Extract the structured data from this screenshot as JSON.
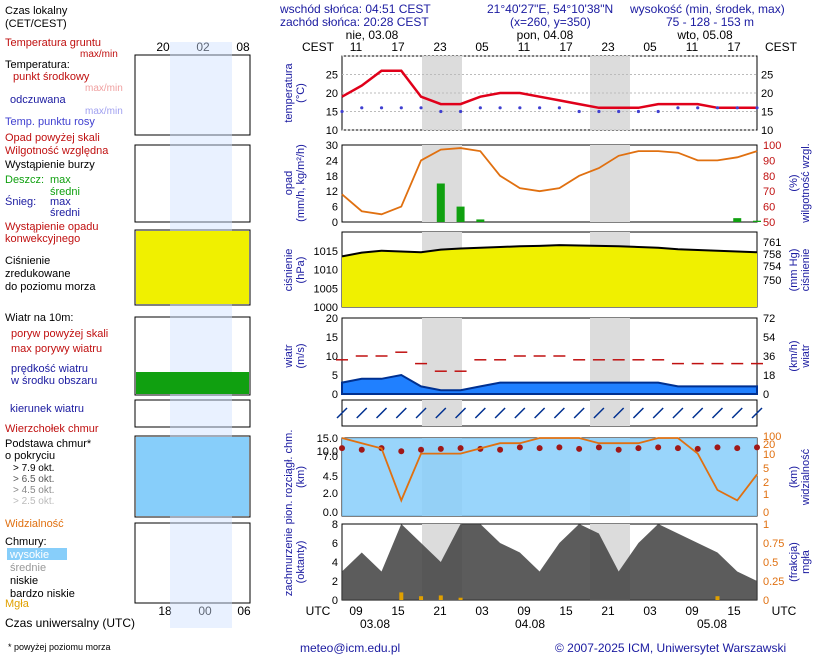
{
  "colors": {
    "temp": "#e0001a",
    "dew": "#4040d0",
    "red": "#c01010",
    "blue": "#1a1aa0",
    "orange": "#e07010",
    "green": "#10a010",
    "pressure": "#f0f000",
    "wind_dark": "#003090",
    "wind_light": "#2080ff",
    "cloud_dark": "#404040",
    "night": "#dcdcdc",
    "sky": "#87cefa"
  },
  "header": {
    "sunrise": "wschód słońca: 04:51 CEST",
    "sunset": "zachód słońca: 20:28 CEST",
    "coords": "21°40'27\"E, 54°10'38\"N",
    "grid": "(x=260, y=350)",
    "height_label": "wysokość (min, środek, max)",
    "heights": "75 - 128 - 153 m"
  },
  "timezone_label": "CEST",
  "days": [
    {
      "label": "nie, 03.08"
    },
    {
      "label": "pon, 04.08"
    },
    {
      "label": "wto, 05.08"
    }
  ],
  "top_hours": [
    "11",
    "17",
    "23",
    "05",
    "11",
    "17",
    "23",
    "05",
    "11",
    "17"
  ],
  "bottom_hours": [
    "09",
    "15",
    "21",
    "03",
    "09",
    "15",
    "21",
    "03",
    "09",
    "15"
  ],
  "bottom_dates": [
    "03.08",
    "04.08",
    "05.08"
  ],
  "utc_label": "UTC",
  "legend": {
    "time_title": "Czas lokalny\n(CET/CEST)",
    "time_hours": [
      "20",
      "02",
      "08"
    ],
    "utc_hours": [
      "18",
      "00",
      "06"
    ],
    "utc_title": "Czas uniwersalny (UTC)",
    "temp_soil": "Temperatura gruntu",
    "max_min": "max/min",
    "temp": "Temperatura:",
    "temp_point": "punkt środkowy",
    "max_min2": "max/min",
    "perceived": "odczuwana",
    "max_min3": "max/min",
    "dew": "Temp. punktu rosy",
    "precip_above": "Opad powyżej skali",
    "humidity": "Wilgotność względna",
    "storm": "Wystąpienie burzy",
    "rain": "Deszcz:",
    "rain_max": "max",
    "rain_mid": "średni",
    "snow": "Śnieg:",
    "snow_max": "max",
    "snow_mid": "średni",
    "convective": "Wystąpienie opadu\nkonwekcyjnego",
    "pressure": "Ciśnienie\nzredukowane\ndo poziomu morza",
    "wind_10m": "Wiatr na 10m:",
    "gust_above": "poryw powyżej skali",
    "gust_max": "max porywy wiatru",
    "wind_speed": "prędkość wiatru\nw środku obszaru",
    "wind_dir": "kierunek wiatru",
    "cloud_top": "Wierzchołek chmur",
    "cloud_base": "Podstawa chmur*\no pokryciu",
    "okt": [
      "> 7.9 okt.",
      "> 6.5 okt.",
      "> 4.5 okt.",
      "> 2.5 okt.",
      "> 0.1 okt."
    ],
    "visibility": "Widzialność",
    "clouds": "Chmury:",
    "cl_high": "wysokie",
    "cl_mid": "średnie",
    "cl_low": "niskie",
    "cl_vlow": "bardzo niskie",
    "fog": "Mgła",
    "footnote": "* powyżej poziomu morza"
  },
  "panel_labels": {
    "temp": "temperatura\n(°C)",
    "precip": "opad\n(mm/h, kg/m²/h)",
    "humid": "(%)\nwilgotność wzgl.",
    "pressure": "ciśnienie\n(hPa)",
    "press_mm": "(mm Hg)\nciśnienie",
    "wind": "wiatr\n(m/s)",
    "wind_kmh": "(km/h)\nwiatr",
    "wind_dir_L": "W S N E",
    "cloud": "pion. rozciągł. chm.\n(km)",
    "vis": "(km)\nwidzialność",
    "cover": "zachmurzenie\n(oktanty)",
    "fog": "(frakcja)\nmgła"
  },
  "footer": {
    "email": "meteo@icm.edu.pl",
    "copyright": "© 2007-2025 ICM, Uniwersytet Warszawski"
  },
  "chart_data": {
    "type": "line",
    "hours_utc_start": "03.08 08",
    "step_h": 3,
    "temperature": [
      19,
      22,
      26,
      26,
      19,
      17,
      17,
      19,
      20,
      20,
      19,
      18,
      17,
      16,
      16,
      16,
      17,
      17,
      17,
      16,
      16,
      16
    ],
    "dew_point": [
      15,
      16,
      16,
      16,
      16,
      15,
      15,
      16,
      16,
      16,
      16,
      16,
      15,
      15,
      15,
      15,
      15,
      16,
      16,
      16,
      16,
      16
    ],
    "humidity": [
      68,
      57,
      55,
      60,
      90,
      97,
      98,
      96,
      80,
      72,
      70,
      72,
      80,
      85,
      93,
      96,
      96,
      95,
      90,
      90,
      92,
      96
    ],
    "precip": [
      0,
      0,
      0,
      0,
      0,
      15,
      6,
      1,
      0,
      0,
      0,
      0,
      0,
      0,
      0,
      0,
      0,
      0,
      0,
      0,
      1.5,
      0.5
    ],
    "pressure": [
      1013.5,
      1014.5,
      1015,
      1014.8,
      1014.6,
      1015.3,
      1015.6,
      1015.8,
      1016,
      1016.2,
      1016.3,
      1016.5,
      1016.4,
      1016.3,
      1016.2,
      1016,
      1015.8,
      1015.4,
      1015.2,
      1015,
      1014.8,
      1014.6
    ],
    "wind": [
      3,
      4,
      4,
      5,
      2,
      1,
      1,
      2,
      3,
      3,
      3,
      3,
      3,
      3,
      3,
      3,
      3,
      2,
      2,
      2,
      2,
      2
    ],
    "wind_gust": [
      9,
      10,
      10,
      11,
      8,
      6,
      6,
      9,
      9,
      10,
      10,
      10,
      9,
      9,
      9,
      9,
      9,
      8,
      8,
      8,
      8,
      8
    ],
    "visibility": [
      15,
      14,
      13,
      3,
      12,
      12,
      12,
      13,
      14,
      14,
      15,
      15,
      15,
      14,
      14,
      14,
      15,
      15,
      12,
      5,
      3,
      8
    ],
    "cloud_top": [
      8.7,
      8.5,
      8.7,
      8.3,
      8.5,
      8.6,
      8.7,
      8.6,
      8.5,
      8.8,
      8.7,
      8.8,
      8.6,
      8.8,
      8.5,
      8.7,
      8.8,
      8.7,
      8.6,
      8.8,
      8.7,
      8.8
    ],
    "cloud_cover": [
      3,
      5,
      3,
      8,
      6,
      4,
      8,
      8,
      6,
      5,
      3,
      6,
      8,
      7,
      3,
      6,
      8,
      7,
      6,
      5,
      3,
      2
    ],
    "fog": [
      0,
      0,
      0,
      0.1,
      0.05,
      0.06,
      0.03,
      0,
      0,
      0,
      0,
      0,
      0,
      0,
      0,
      0,
      0,
      0,
      0,
      0.05,
      0,
      0
    ],
    "temperature_ylim": [
      10,
      30
    ],
    "precip_ylim": [
      0,
      30
    ],
    "humidity_ylim": [
      50,
      100
    ],
    "pressure_ylim": [
      1000,
      1020
    ],
    "wind_ylim": [
      0,
      20
    ],
    "vis_ylim": [
      0,
      15
    ],
    "cover_ylim": [
      0,
      8
    ]
  }
}
